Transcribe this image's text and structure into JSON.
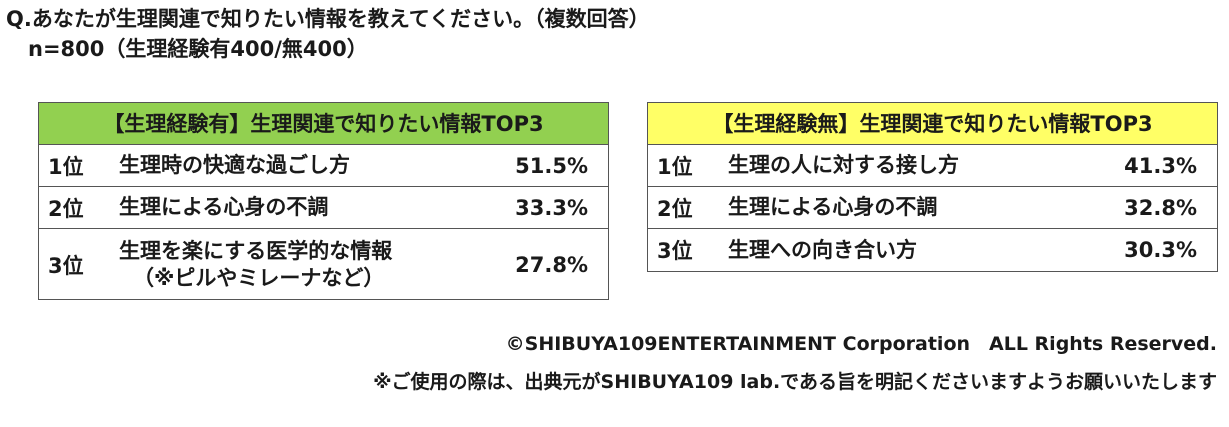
{
  "question": {
    "line1": "Q.あなたが生理関連で知りたい情報を教えてください。（複数回答）",
    "line2": "n=800（生理経験有400/無400）"
  },
  "colors": {
    "left_header_bg": "#92d050",
    "right_header_bg": "#ffff66",
    "border": "#555555"
  },
  "left_table": {
    "title": "【生理経験有】生理関連で知りたい情報TOP3",
    "rows": [
      {
        "rank": "1位",
        "item": "生理時の快適な過ごし方",
        "item_sub": "",
        "pct": "51.5%"
      },
      {
        "rank": "2位",
        "item": "生理による心身の不調",
        "item_sub": "",
        "pct": "33.3%"
      },
      {
        "rank": "3位",
        "item": "生理を楽にする医学的な情報",
        "item_sub": "（※ピルやミレーナなど）",
        "pct": "27.8%"
      }
    ]
  },
  "right_table": {
    "title": "【生理経験無】生理関連で知りたい情報TOP3",
    "rows": [
      {
        "rank": "1位",
        "item": "生理の人に対する接し方",
        "pct": "41.3%"
      },
      {
        "rank": "2位",
        "item": "生理による心身の不調",
        "pct": "32.8%"
      },
      {
        "rank": "3位",
        "item": "生理への向き合い方",
        "pct": "30.3%"
      }
    ]
  },
  "footer": {
    "copyright": "©SHIBUYA109ENTERTAINMENT Corporation　ALL Rights Reserved.",
    "notice": "※ご使用の際は、出典元がSHIBUYA109 lab.である旨を明記くださいますようお願いいたします"
  }
}
